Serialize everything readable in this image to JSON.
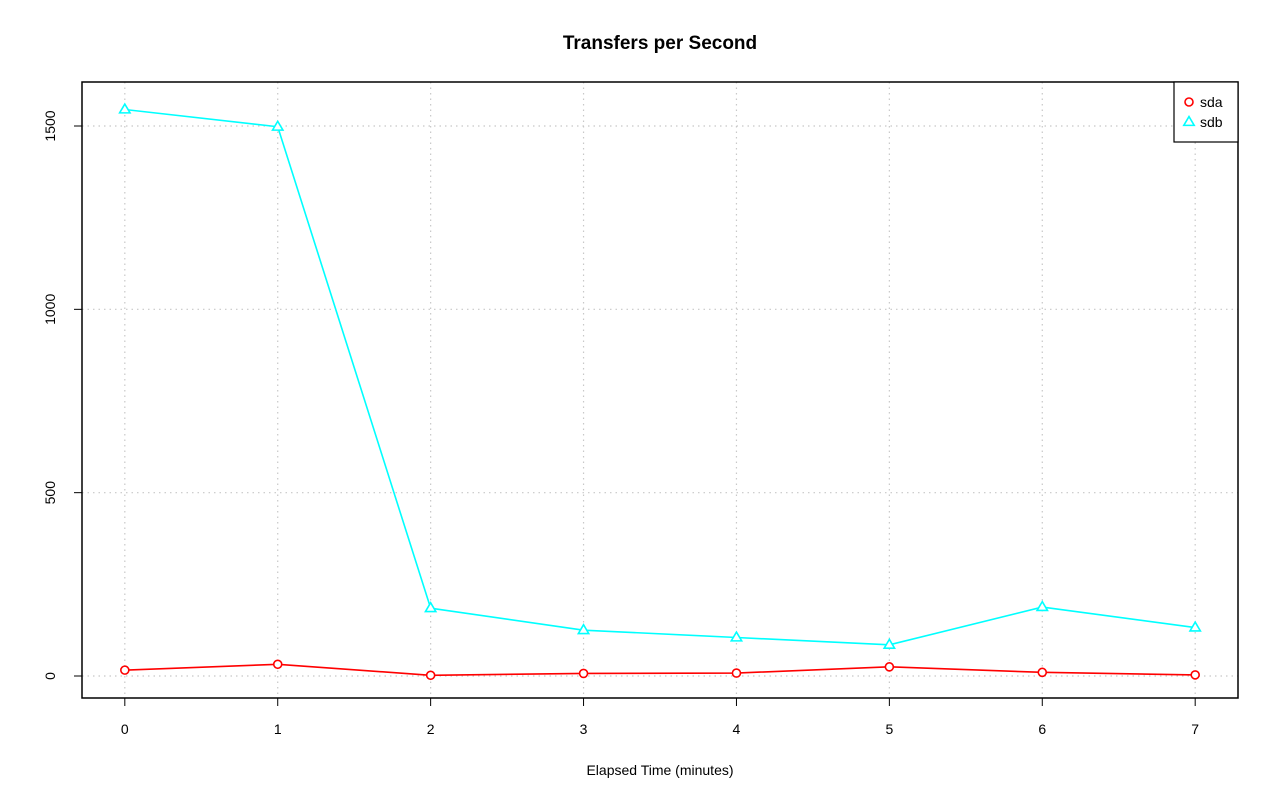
{
  "chart_data": {
    "type": "line",
    "title": "Transfers per Second",
    "xlabel": "Elapsed Time (minutes)",
    "ylabel": "",
    "x": [
      0,
      1,
      2,
      3,
      4,
      5,
      6,
      7
    ],
    "xlim": [
      -0.28,
      7.28
    ],
    "ylim": [
      -60,
      1620
    ],
    "x_ticks": [
      0,
      1,
      2,
      3,
      4,
      5,
      6,
      7
    ],
    "y_ticks": [
      0,
      500,
      1000,
      1500
    ],
    "grid": true,
    "legend_position": "top-right",
    "series": [
      {
        "name": "sda",
        "color": "#ff0000",
        "marker": "circle",
        "values": [
          16,
          32,
          2,
          7,
          8,
          25,
          10,
          3
        ]
      },
      {
        "name": "sdb",
        "color": "#00ffff",
        "marker": "triangle",
        "values": [
          1545,
          1498,
          185,
          125,
          105,
          85,
          188,
          132
        ]
      }
    ]
  }
}
